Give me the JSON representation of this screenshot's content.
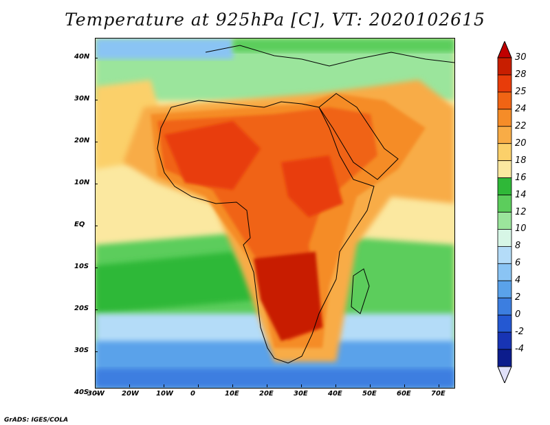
{
  "title": "Temperature at 925hPa [C], VT: 2020102615",
  "credit": "GrADS: IGES/COLA",
  "lon_labels": [
    "30W",
    "20W",
    "10W",
    "0",
    "10E",
    "20E",
    "30E",
    "40E",
    "50E",
    "60E",
    "70E"
  ],
  "lat_labels": [
    "40N",
    "30N",
    "20N",
    "10N",
    "EQ",
    "10S",
    "20S",
    "30S",
    "40S"
  ],
  "colorbar": {
    "labels": [
      "30",
      "28",
      "25",
      "24",
      "22",
      "20",
      "18",
      "16",
      "14",
      "12",
      "10",
      "8",
      "6",
      "4",
      "2",
      "0",
      "-2",
      "-4"
    ],
    "colors": [
      "#c81e00",
      "#e83c0a",
      "#f06414",
      "#f58c28",
      "#f8ac46",
      "#fbd06a",
      "#fbe8a0",
      "#2fb838",
      "#5ccd5c",
      "#9be59c",
      "#d7f6e6",
      "#b4dcf8",
      "#8ac4f4",
      "#5aa2ea",
      "#3c7ee0",
      "#2458d2",
      "#1834b4",
      "#0c1c8c"
    ],
    "over_color": "#c00000",
    "under_color": "#e0e0f8"
  }
}
